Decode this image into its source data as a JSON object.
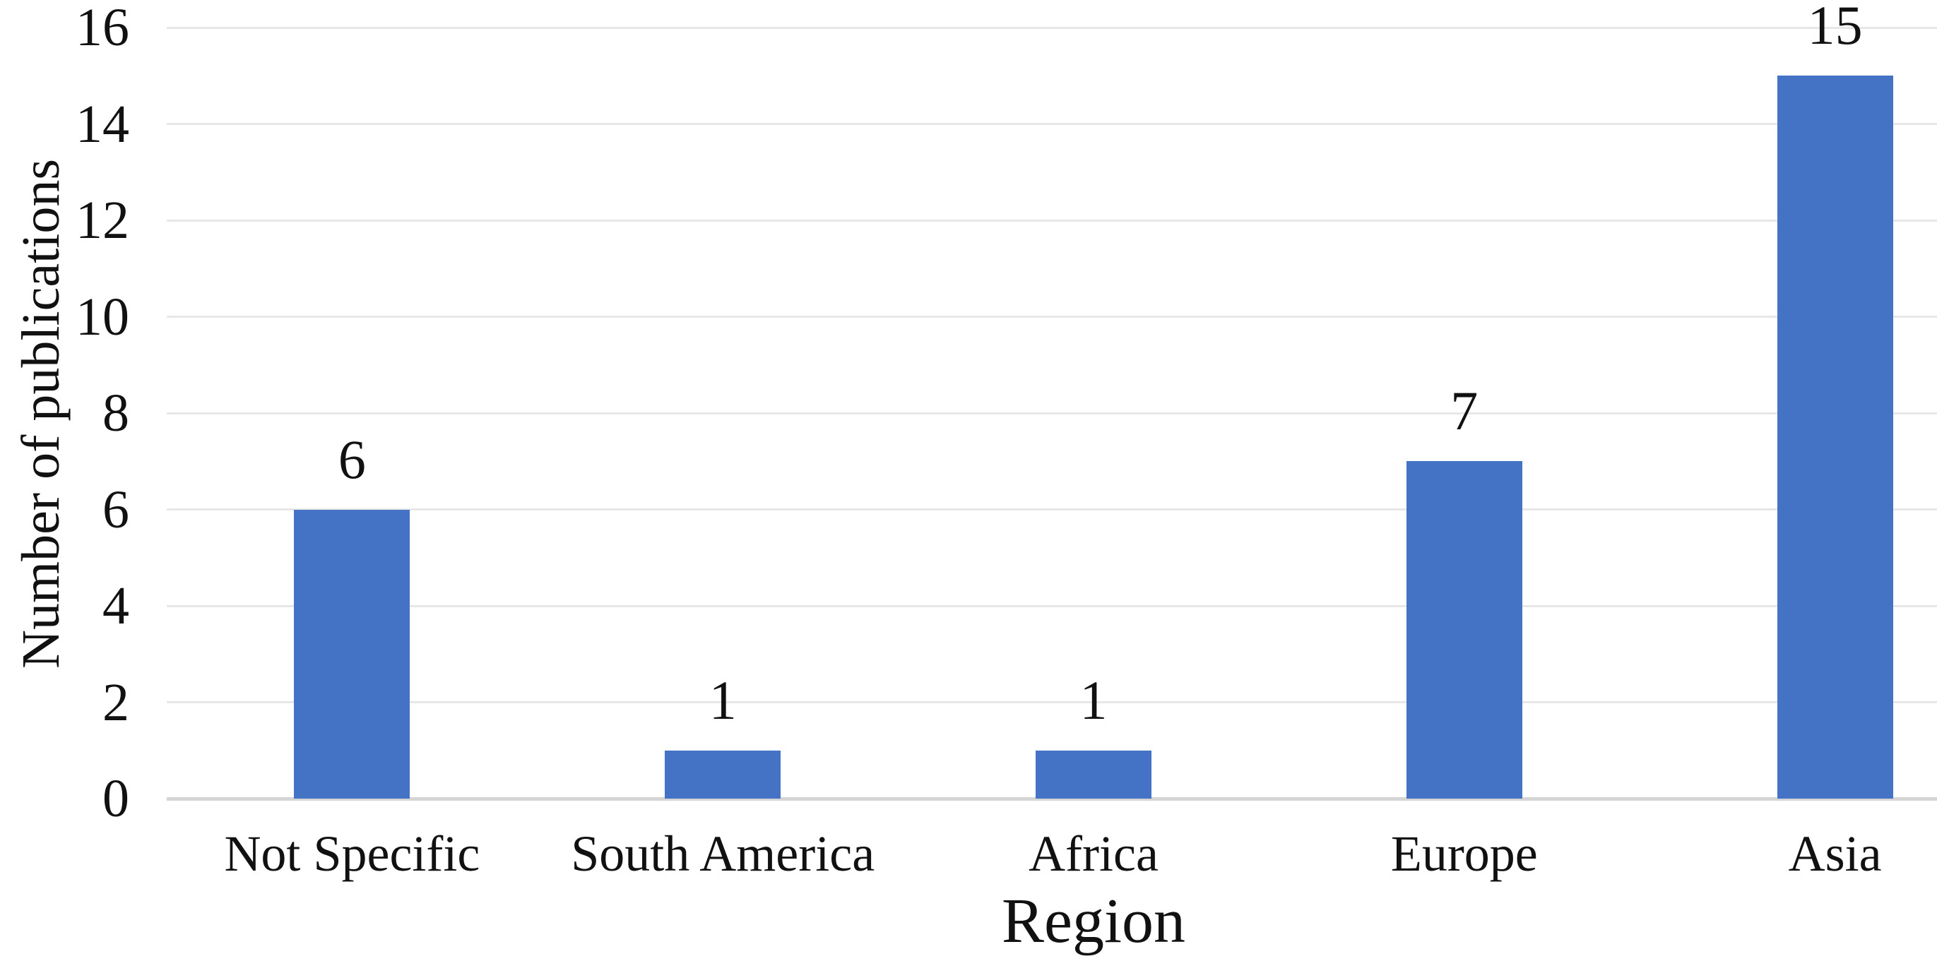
{
  "chart_data": {
    "type": "bar",
    "title": "",
    "categories": [
      "Not Specific",
      "South America",
      "Africa",
      "Europe",
      "Asia"
    ],
    "values": [
      6,
      1,
      1,
      7,
      15
    ],
    "data_labels": [
      "6",
      "1",
      "1",
      "7",
      "15"
    ],
    "xlabel": "Region",
    "ylabel": "Number of publications",
    "ylim": [
      0,
      16
    ],
    "ytick_step": 2,
    "yticks": [
      "0",
      "2",
      "4",
      "6",
      "8",
      "10",
      "12",
      "14",
      "16"
    ],
    "grid": "horizontal-major-on",
    "legend": "none",
    "colors": {
      "bar": "#4472C4",
      "gridline": "#E7E7E7",
      "axis_line": "#D5D5D5",
      "text": "#111111",
      "background": "#FFFFFF"
    }
  }
}
